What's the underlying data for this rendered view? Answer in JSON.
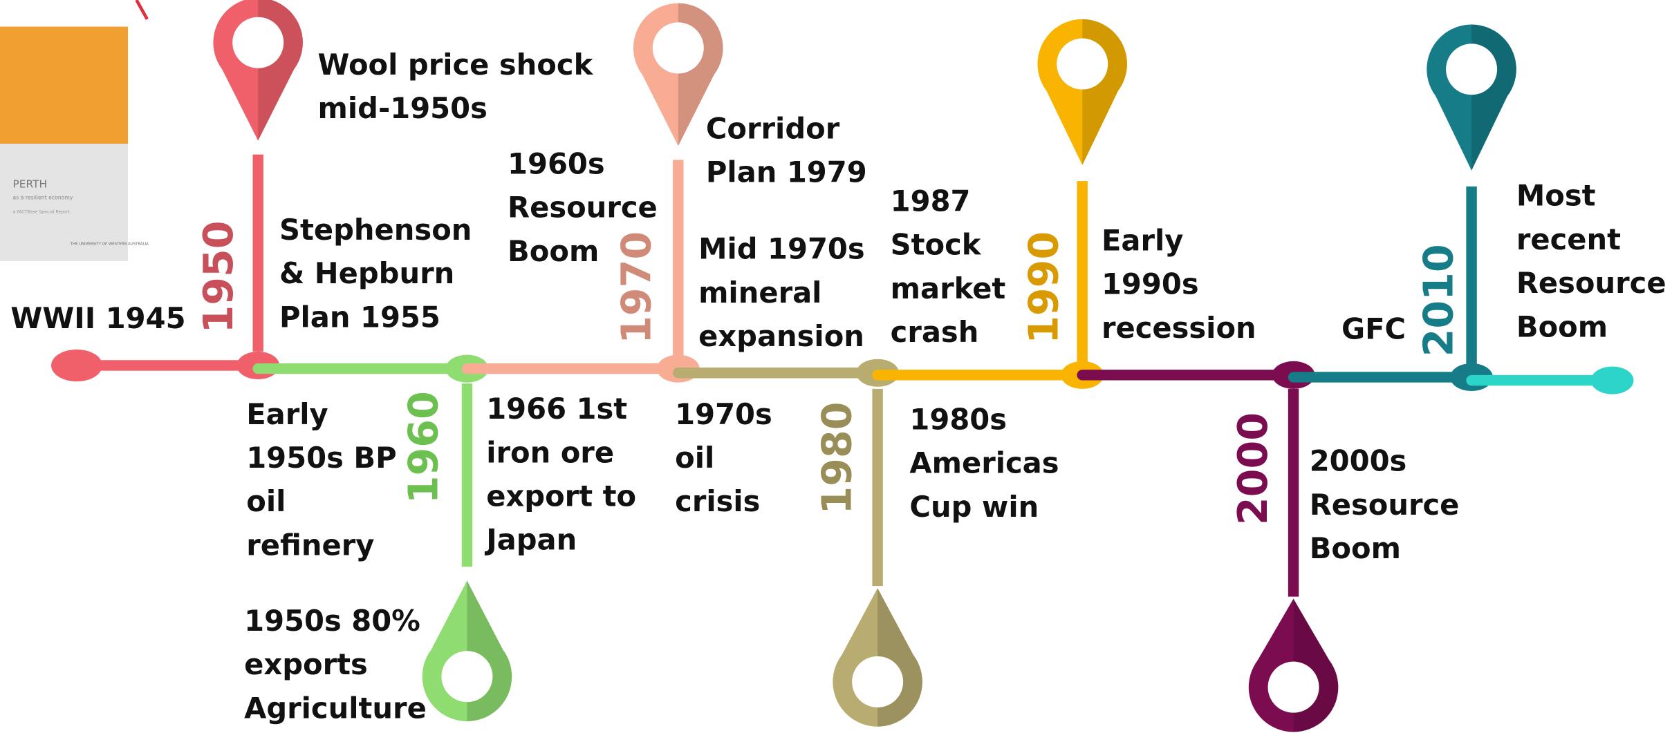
{
  "cover": {
    "title": "PERTH",
    "subtitle": "as a resilient economy",
    "note": "a FACTBase Special Report",
    "logo": "THE UNIVERSITY OF WESTERN AUSTRALIA"
  },
  "start": {
    "label": "WWII 1945",
    "color": "#f0606a"
  },
  "milestones": [
    {
      "year": "1950",
      "color": "#f0606a",
      "year_color": "#c8505a",
      "events": [
        {
          "lines": [
            "Wool price shock",
            "mid-1950s"
          ]
        },
        {
          "lines": [
            "Stephenson",
            "& Hepburn",
            "Plan 1955"
          ]
        },
        {
          "lines": [
            "Early",
            "1950s BP",
            "oil",
            "refinery"
          ]
        },
        {
          "lines": [
            "1950s 80%",
            "exports",
            "Agriculture"
          ]
        }
      ]
    },
    {
      "year": "1960",
      "color": "#8fdc70",
      "year_color": "#6cc050",
      "events": [
        {
          "lines": [
            "1966 1st",
            "iron ore",
            "export to",
            "Japan"
          ]
        }
      ]
    },
    {
      "year": "1970",
      "color": "#f8ac94",
      "year_color": "#d08a78",
      "events": [
        {
          "lines": [
            "1960s",
            "Resource",
            "Boom"
          ]
        },
        {
          "lines": [
            "Corridor",
            "Plan 1979"
          ]
        },
        {
          "lines": [
            "Mid 1970s",
            "mineral",
            "expansion"
          ]
        },
        {
          "lines": [
            "1970s",
            "oil",
            "crisis"
          ]
        }
      ]
    },
    {
      "year": "1980",
      "color": "#b8ac70",
      "year_color": "#9a8e58",
      "events": [
        {
          "lines": [
            "1987",
            "Stock",
            "market",
            "crash"
          ]
        },
        {
          "lines": [
            "1980s",
            "Americas",
            "Cup win"
          ]
        }
      ]
    },
    {
      "year": "1990",
      "color": "#f8b400",
      "year_color": "#d89a00",
      "events": [
        {
          "lines": [
            "Early",
            "1990s",
            "recession"
          ]
        }
      ]
    },
    {
      "year": "2000",
      "color": "#7c0c50",
      "year_color": "#7c0c50",
      "events": [
        {
          "lines": [
            "2000s",
            "Resource",
            "Boom"
          ]
        }
      ]
    },
    {
      "year": "2010",
      "color": "#157c88",
      "year_color": "#157c88",
      "events": [
        {
          "lines": [
            "GFC"
          ]
        },
        {
          "lines": [
            "Most",
            "recent",
            "Resource",
            "Boom"
          ]
        }
      ]
    }
  ],
  "end": {
    "color": "#2dd4c8"
  }
}
